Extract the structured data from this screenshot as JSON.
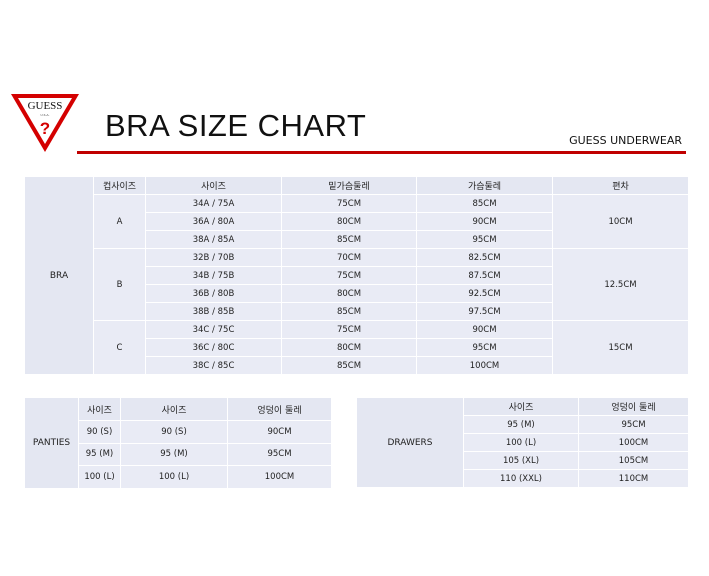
{
  "header": {
    "logo_text": "GUESS",
    "title": "BRA SIZE CHART",
    "brand": "GUESS UNDERWEAR",
    "accent_color": "#c00000"
  },
  "bra": {
    "category": "BRA",
    "columns": [
      "컵사이즈",
      "사이즈",
      "밑가슴둘레",
      "가슴둘레",
      "편차"
    ],
    "groups": [
      {
        "cup": "A",
        "deviation": "10CM",
        "rows": [
          [
            "34A / 75A",
            "75CM",
            "85CM"
          ],
          [
            "36A / 80A",
            "80CM",
            "90CM"
          ],
          [
            "38A / 85A",
            "85CM",
            "95CM"
          ]
        ]
      },
      {
        "cup": "B",
        "deviation": "12.5CM",
        "rows": [
          [
            "32B / 70B",
            "70CM",
            "82.5CM"
          ],
          [
            "34B / 75B",
            "75CM",
            "87.5CM"
          ],
          [
            "36B / 80B",
            "80CM",
            "92.5CM"
          ],
          [
            "38B / 85B",
            "85CM",
            "97.5CM"
          ]
        ]
      },
      {
        "cup": "C",
        "deviation": "15CM",
        "rows": [
          [
            "34C / 75C",
            "75CM",
            "90CM"
          ],
          [
            "36C / 80C",
            "80CM",
            "95CM"
          ],
          [
            "38C / 85C",
            "85CM",
            "100CM"
          ]
        ]
      }
    ]
  },
  "panties": {
    "category": "PANTIES",
    "columns": [
      "사이즈",
      "사이즈",
      "엉덩이 둘레"
    ],
    "rows": [
      [
        "90 (S)",
        "90 (S)",
        "90CM"
      ],
      [
        "95 (M)",
        "95 (M)",
        "95CM"
      ],
      [
        "100 (L)",
        "100 (L)",
        "100CM"
      ]
    ]
  },
  "drawers": {
    "category": "DRAWERS",
    "columns": [
      "사이즈",
      "엉덩이 둘레"
    ],
    "rows": [
      [
        "95 (M)",
        "95CM"
      ],
      [
        "100 (L)",
        "100CM"
      ],
      [
        "105 (XL)",
        "105CM"
      ],
      [
        "110 (XXL)",
        "110CM"
      ]
    ]
  }
}
